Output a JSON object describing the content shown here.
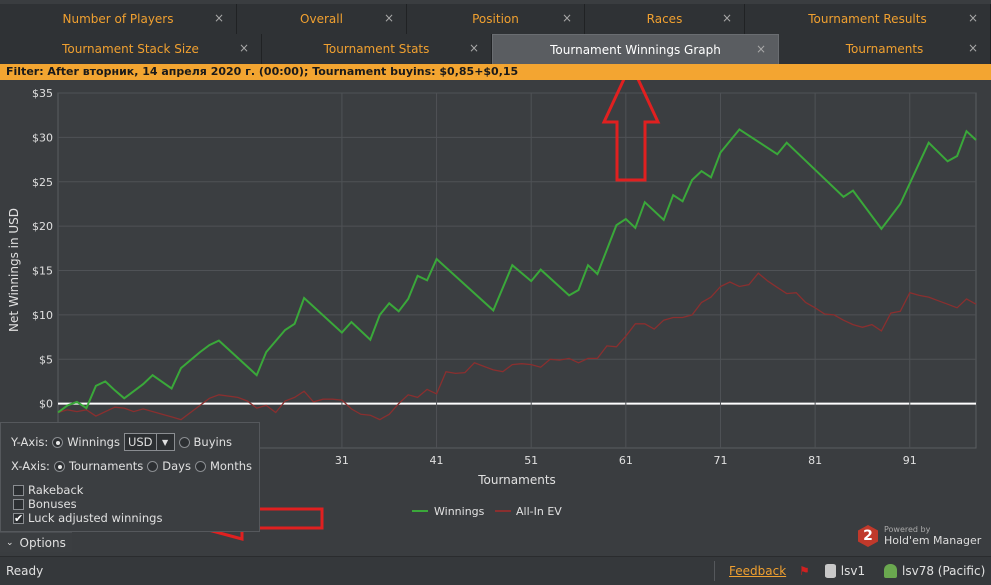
{
  "tabs_row1": [
    {
      "label": "Number of Players",
      "close": "×"
    },
    {
      "label": "Overall",
      "close": "×"
    },
    {
      "label": "Position",
      "close": "×"
    },
    {
      "label": "Races",
      "close": "×"
    },
    {
      "label": "Tournament Results",
      "close": "×"
    }
  ],
  "tabs_row2": [
    {
      "label": "Tournament Stack Size",
      "close": "×"
    },
    {
      "label": "Tournament Stats",
      "close": "×"
    },
    {
      "label": "Tournament Winnings Graph",
      "close": "×",
      "active": true
    },
    {
      "label": "Tournaments",
      "close": "×"
    }
  ],
  "filter": {
    "text": "Filter: After вторник, 14 апреля 2020 г. (00:00); Tournament buyins: $0,85+$0,15"
  },
  "chart_data": {
    "type": "line",
    "xlabel": "Tournaments",
    "ylabel": "Net Winnings in USD",
    "xlim": [
      1,
      95
    ],
    "ylim": [
      -5,
      35
    ],
    "x_ticks": [
      31,
      41,
      51,
      61,
      71,
      81,
      91
    ],
    "y_ticks": [
      "$0",
      "$5",
      "$10",
      "$15",
      "$20",
      "$25",
      "$30",
      "$35"
    ],
    "legend": "bottom-center",
    "series": [
      {
        "name": "Winnings",
        "color": "#3aa83a",
        "points": [
          [
            1,
            -1
          ],
          [
            2,
            -0.2
          ],
          [
            3,
            0.2
          ],
          [
            4,
            -0.5
          ],
          [
            5,
            2
          ],
          [
            6,
            2.5
          ],
          [
            7,
            1.5
          ],
          [
            8,
            0.6
          ],
          [
            10,
            2.2
          ],
          [
            11,
            3.2
          ],
          [
            13,
            1.7
          ],
          [
            14,
            4
          ],
          [
            16,
            5.8
          ],
          [
            17,
            6.6
          ],
          [
            18,
            7.1
          ],
          [
            22,
            3.2
          ],
          [
            23,
            5.8
          ],
          [
            25,
            8.3
          ],
          [
            26,
            9
          ],
          [
            27,
            11.9
          ],
          [
            31,
            8
          ],
          [
            32,
            9.2
          ],
          [
            34,
            7.2
          ],
          [
            35,
            10
          ],
          [
            36,
            11.3
          ],
          [
            37,
            10.4
          ],
          [
            38,
            11.8
          ],
          [
            39,
            14.4
          ],
          [
            40,
            13.9
          ],
          [
            41,
            16.3
          ],
          [
            47,
            10.5
          ],
          [
            49,
            15.6
          ],
          [
            51,
            13.8
          ],
          [
            52,
            15.1
          ],
          [
            55,
            12.2
          ],
          [
            56,
            12.8
          ],
          [
            57,
            15.6
          ],
          [
            58,
            14.6
          ],
          [
            60,
            20.1
          ],
          [
            61,
            20.8
          ],
          [
            62,
            19.8
          ],
          [
            63,
            22.7
          ],
          [
            65,
            20.7
          ],
          [
            66,
            23.5
          ],
          [
            67,
            22.8
          ],
          [
            68,
            25.2
          ],
          [
            69,
            26.2
          ],
          [
            70,
            25.5
          ],
          [
            71,
            28.3
          ],
          [
            73,
            30.9
          ],
          [
            77,
            28.1
          ],
          [
            78,
            29.4
          ],
          [
            84,
            23.3
          ],
          [
            85,
            24
          ],
          [
            88,
            19.7
          ],
          [
            90,
            22.5
          ],
          [
            92,
            27.1
          ],
          [
            93,
            29.4
          ],
          [
            95,
            27.3
          ],
          [
            96,
            27.9
          ],
          [
            97,
            30.7
          ],
          [
            98,
            29.7
          ]
        ]
      },
      {
        "name": "All-In EV",
        "color": "#8a2f2f",
        "points": [
          [
            1,
            -1
          ],
          [
            2,
            -0.7
          ],
          [
            3,
            -0.9
          ],
          [
            4,
            -0.7
          ],
          [
            5,
            -1.4
          ],
          [
            7,
            -0.4
          ],
          [
            8,
            -0.5
          ],
          [
            9,
            -0.9
          ],
          [
            10,
            -0.6
          ],
          [
            12,
            -1.2
          ],
          [
            13,
            -1.5
          ],
          [
            14,
            -1.8
          ],
          [
            17,
            0.6
          ],
          [
            18,
            1
          ],
          [
            20,
            0.7
          ],
          [
            21,
            0.3
          ],
          [
            22,
            -0.5
          ],
          [
            23,
            -0.2
          ],
          [
            24,
            -1
          ],
          [
            25,
            0.3
          ],
          [
            26,
            0.7
          ],
          [
            27,
            1.4
          ],
          [
            28,
            0.2
          ],
          [
            29,
            0.5
          ],
          [
            30,
            0.5
          ],
          [
            31,
            0.4
          ],
          [
            32,
            -0.6
          ],
          [
            33,
            -1.2
          ],
          [
            34,
            -1.3
          ],
          [
            35,
            -1.8
          ],
          [
            36,
            -1.2
          ],
          [
            37,
            0
          ],
          [
            38,
            1
          ],
          [
            39,
            0.7
          ],
          [
            40,
            1.6
          ],
          [
            41,
            1.1
          ],
          [
            42,
            3.6
          ],
          [
            43,
            3.4
          ],
          [
            44,
            3.5
          ],
          [
            45,
            4.6
          ],
          [
            46,
            4.2
          ],
          [
            47,
            3.8
          ],
          [
            48,
            3.6
          ],
          [
            49,
            4.4
          ],
          [
            50,
            4.5
          ],
          [
            51,
            4.4
          ],
          [
            52,
            4.1
          ],
          [
            53,
            5
          ],
          [
            54,
            4.9
          ],
          [
            55,
            5.1
          ],
          [
            56,
            4.6
          ],
          [
            57,
            5.1
          ],
          [
            58,
            5.1
          ],
          [
            59,
            6.5
          ],
          [
            60,
            6.4
          ],
          [
            61,
            7.6
          ],
          [
            62,
            9
          ],
          [
            63,
            9
          ],
          [
            64,
            8.4
          ],
          [
            65,
            9.4
          ],
          [
            66,
            9.7
          ],
          [
            67,
            9.7
          ],
          [
            68,
            10
          ],
          [
            69,
            11.4
          ],
          [
            70,
            12
          ],
          [
            71,
            13.2
          ],
          [
            72,
            13.7
          ],
          [
            73,
            13.2
          ],
          [
            74,
            13.4
          ],
          [
            75,
            14.7
          ],
          [
            76,
            13.8
          ],
          [
            77,
            13.1
          ],
          [
            78,
            12.4
          ],
          [
            79,
            12.5
          ],
          [
            80,
            11.4
          ],
          [
            81,
            10.8
          ],
          [
            82,
            10.1
          ],
          [
            83,
            10
          ],
          [
            84,
            9.4
          ],
          [
            85,
            8.9
          ],
          [
            86,
            8.6
          ],
          [
            87,
            8.9
          ],
          [
            88,
            8.2
          ],
          [
            89,
            10.2
          ],
          [
            90,
            10.4
          ],
          [
            91,
            12.5
          ],
          [
            92,
            12.2
          ],
          [
            93,
            12
          ],
          [
            94,
            11.6
          ],
          [
            95,
            11.2
          ],
          [
            96,
            10.8
          ],
          [
            97,
            11.8
          ],
          [
            98,
            11.2
          ]
        ]
      }
    ]
  },
  "options": {
    "y_axis_label": "Y-Axis:",
    "y_winnings": "Winnings",
    "currency": "USD",
    "y_buyins": "Buyins",
    "x_axis_label": "X-Axis:",
    "x_tournaments": "Tournaments",
    "x_days": "Days",
    "x_months": "Months",
    "rakeback": "Rakeback",
    "bonuses": "Bonuses",
    "luck_adjusted": "Luck adjusted winnings",
    "options_button": "Options"
  },
  "status": {
    "ready": "Ready",
    "feedback": "Feedback",
    "db": "lsv1",
    "user": "lsv78 (Pacific)"
  },
  "brand": {
    "line1": "Powered by",
    "line2": "Hold'em Manager",
    "logo": "2"
  }
}
